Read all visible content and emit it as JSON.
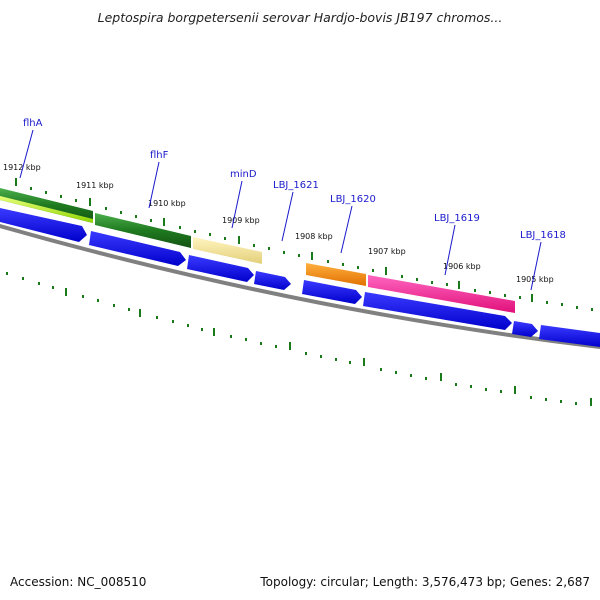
{
  "title": "Leptospira borgpetersenii serovar Hardjo-bovis JB197 chromos...",
  "footer": {
    "accession": "Accession: NC_008510",
    "summary": "Topology: circular; Length: 3,576,473 bp; Genes: 2,687"
  },
  "colors": {
    "cds_arrow": "#0000ee",
    "backbone": "#808080",
    "tick_marks": "#1a7a1a",
    "label_text": "#1a1acc"
  },
  "scale_labels": [
    "1912 kbp",
    "1911 kbp",
    "1910 kbp",
    "1909 kbp",
    "1908 kbp",
    "1907 kbp",
    "1906 kbp",
    "1905 kbp"
  ],
  "features": [
    {
      "label": "flhA",
      "color": "#2a8a2a"
    },
    {
      "label": "flhF",
      "color": "#1f7a1f"
    },
    {
      "label": "minD",
      "color": "#eedc8a"
    },
    {
      "label": "LBJ_1621",
      "color": "#0000ee"
    },
    {
      "label": "LBJ_1620",
      "color": "#ff8c00"
    },
    {
      "label": "LBJ_1619",
      "color": "#ff1493"
    },
    {
      "label": "LBJ_1618",
      "color": "#0000ee"
    }
  ]
}
